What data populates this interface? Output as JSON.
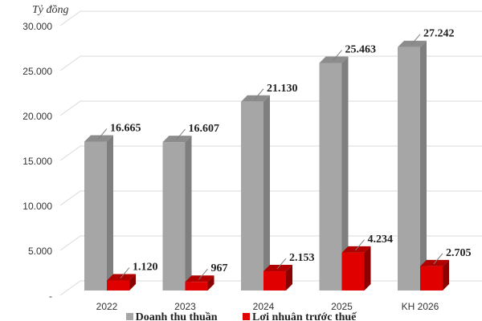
{
  "chart_data": {
    "type": "bar",
    "title": "",
    "ylabel": "Tỷ đồng",
    "xlabel": "",
    "ylim": [
      0,
      30000
    ],
    "yticks": [
      "-",
      "5.000",
      "10.000",
      "15.000",
      "20.000",
      "25.000",
      "30.000"
    ],
    "ytick_values": [
      0,
      5000,
      10000,
      15000,
      20000,
      25000,
      30000
    ],
    "categories": [
      "2022",
      "2023",
      "2024",
      "2025",
      "KH 2026"
    ],
    "series": [
      {
        "name": "Doanh thu thuần",
        "color": "#a6a6a6",
        "values": [
          16665,
          16607,
          21130,
          25463,
          27242
        ],
        "labels": [
          "16.665",
          "16.607",
          "21.130",
          "25.463",
          "27.242"
        ]
      },
      {
        "name": "Lợi nhuận trước thuế",
        "color": "#e00000",
        "values": [
          1120,
          967,
          2153,
          4234,
          2705
        ],
        "labels": [
          "1.120",
          "967",
          "2.153",
          "4.234",
          "2.705"
        ]
      }
    ],
    "grid": true,
    "legend": "bottom",
    "style": "3d-column"
  }
}
